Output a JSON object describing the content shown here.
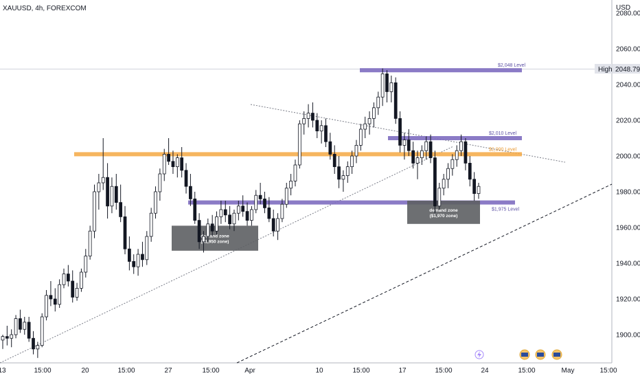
{
  "header": {
    "symbol_title": "XAUUSD, 4h, FOREXCOM"
  },
  "colors": {
    "up": "#131722",
    "down": "#131722",
    "level_purple": "#7e6dc0",
    "level_orange": "#f5a843",
    "zone_gray": "#5d5f63",
    "axis_bg": "#ffffff",
    "high_badge": "#e1e3ea"
  },
  "chart_data": {
    "type": "candlestick",
    "currency": "USD",
    "y_ticks": [
      "2080.00",
      "2060.00",
      "2040.00",
      "2020.00",
      "2000.00",
      "1980.00",
      "1960.00",
      "1940.00",
      "1920.00",
      "1900.00"
    ],
    "x_ticks": [
      "13",
      "15:00",
      "20",
      "15:00",
      "27",
      "15:00",
      "Apr",
      "10",
      "15:00",
      "17",
      "15:00",
      "24",
      "15:00",
      "May",
      "15:00"
    ],
    "ylim": [
      1886,
      2086
    ],
    "high_marker": {
      "label": "High",
      "value": "2048.79"
    },
    "levels": [
      {
        "label": "$2,048 Level",
        "price": 2048,
        "color": "purple"
      },
      {
        "label": "$2,010 Level",
        "price": 2010,
        "color": "purple"
      },
      {
        "label": "$2,000 Level",
        "price": 2001,
        "color": "orange"
      },
      {
        "label": "$1,975 Level",
        "price": 1974,
        "color": "purple"
      }
    ],
    "zones": [
      {
        "title": "demand zone",
        "subtitle": "($1,950 zone)",
        "price_high": 1961,
        "price_low": 1947
      },
      {
        "title": "demand zone",
        "subtitle": "($1,970 zone)",
        "price_high": 1975,
        "price_low": 1962
      }
    ],
    "candles": [
      [
        1897,
        1900,
        1892,
        1899
      ],
      [
        1899,
        1905,
        1894,
        1898
      ],
      [
        1898,
        1903,
        1893,
        1900
      ],
      [
        1900,
        1911,
        1898,
        1909
      ],
      [
        1909,
        1914,
        1901,
        1903
      ],
      [
        1903,
        1910,
        1900,
        1907
      ],
      [
        1907,
        1910,
        1896,
        1898
      ],
      [
        1898,
        1902,
        1889,
        1892
      ],
      [
        1892,
        1896,
        1887,
        1894
      ],
      [
        1894,
        1912,
        1893,
        1910
      ],
      [
        1910,
        1925,
        1908,
        1922
      ],
      [
        1922,
        1930,
        1916,
        1920
      ],
      [
        1920,
        1926,
        1913,
        1917
      ],
      [
        1917,
        1931,
        1915,
        1928
      ],
      [
        1928,
        1937,
        1926,
        1934
      ],
      [
        1934,
        1939,
        1927,
        1930
      ],
      [
        1930,
        1936,
        1918,
        1921
      ],
      [
        1921,
        1929,
        1919,
        1926
      ],
      [
        1926,
        1937,
        1924,
        1935
      ],
      [
        1935,
        1948,
        1932,
        1944
      ],
      [
        1944,
        1961,
        1942,
        1958
      ],
      [
        1958,
        1984,
        1954,
        1980
      ],
      [
        1980,
        1990,
        1970,
        1985
      ],
      [
        1985,
        2010,
        1981,
        1988
      ],
      [
        1988,
        1996,
        1965,
        1972
      ],
      [
        1972,
        1988,
        1968,
        1983
      ],
      [
        1983,
        1990,
        1970,
        1974
      ],
      [
        1974,
        1984,
        1963,
        1966
      ],
      [
        1966,
        1972,
        1945,
        1948
      ],
      [
        1948,
        1955,
        1936,
        1941
      ],
      [
        1941,
        1945,
        1934,
        1938
      ],
      [
        1938,
        1948,
        1933,
        1945
      ],
      [
        1945,
        1952,
        1938,
        1942
      ],
      [
        1942,
        1958,
        1939,
        1955
      ],
      [
        1955,
        1971,
        1952,
        1968
      ],
      [
        1968,
        1983,
        1965,
        1980
      ],
      [
        1980,
        1993,
        1975,
        1990
      ],
      [
        1990,
        2004,
        1986,
        2001
      ],
      [
        2001,
        2010,
        1995,
        1997
      ],
      [
        1997,
        2003,
        1990,
        1994
      ],
      [
        1994,
        2001,
        1988,
        1999
      ],
      [
        1999,
        2005,
        1988,
        1992
      ],
      [
        1992,
        1996,
        1979,
        1983
      ],
      [
        1983,
        1990,
        1972,
        1976
      ],
      [
        1976,
        1980,
        1962,
        1964
      ],
      [
        1964,
        1968,
        1948,
        1952
      ],
      [
        1952,
        1958,
        1946,
        1955
      ],
      [
        1955,
        1965,
        1952,
        1962
      ],
      [
        1962,
        1967,
        1955,
        1958
      ],
      [
        1958,
        1969,
        1956,
        1966
      ],
      [
        1966,
        1975,
        1962,
        1970
      ],
      [
        1970,
        1975,
        1963,
        1967
      ],
      [
        1967,
        1972,
        1959,
        1962
      ],
      [
        1962,
        1970,
        1958,
        1968
      ],
      [
        1968,
        1975,
        1964,
        1972
      ],
      [
        1972,
        1978,
        1966,
        1969
      ],
      [
        1969,
        1974,
        1961,
        1964
      ],
      [
        1964,
        1972,
        1961,
        1970
      ],
      [
        1970,
        1981,
        1968,
        1978
      ],
      [
        1978,
        1985,
        1973,
        1976
      ],
      [
        1976,
        1980,
        1968,
        1971
      ],
      [
        1971,
        1977,
        1963,
        1965
      ],
      [
        1965,
        1970,
        1955,
        1958
      ],
      [
        1958,
        1968,
        1953,
        1965
      ],
      [
        1965,
        1976,
        1963,
        1973
      ],
      [
        1973,
        1985,
        1971,
        1982
      ],
      [
        1982,
        1990,
        1978,
        1986
      ],
      [
        1986,
        1998,
        1983,
        1995
      ],
      [
        1995,
        2020,
        1993,
        2018
      ],
      [
        2018,
        2025,
        2012,
        2021
      ],
      [
        2021,
        2029,
        2016,
        2024
      ],
      [
        2024,
        2030,
        2016,
        2020
      ],
      [
        2020,
        2024,
        2010,
        2014
      ],
      [
        2014,
        2020,
        2007,
        2017
      ],
      [
        2017,
        2021,
        2005,
        2008
      ],
      [
        2008,
        2013,
        1998,
        2001
      ],
      [
        2001,
        2006,
        1990,
        1994
      ],
      [
        1994,
        2000,
        1982,
        1987
      ],
      [
        1987,
        1992,
        1980,
        1989
      ],
      [
        1989,
        1997,
        1985,
        1994
      ],
      [
        1994,
        2003,
        1990,
        2000
      ],
      [
        2000,
        2009,
        1996,
        2006
      ],
      [
        2006,
        2018,
        2003,
        2015
      ],
      [
        2015,
        2022,
        2010,
        2018
      ],
      [
        2018,
        2025,
        2012,
        2021
      ],
      [
        2021,
        2030,
        2016,
        2027
      ],
      [
        2027,
        2036,
        2023,
        2033
      ],
      [
        2033,
        2049,
        2028,
        2046
      ],
      [
        2046,
        2048,
        2030,
        2036
      ],
      [
        2036,
        2045,
        2030,
        2041
      ],
      [
        2041,
        2044,
        2018,
        2021
      ],
      [
        2021,
        2025,
        2002,
        2006
      ],
      [
        2006,
        2013,
        1998,
        2009
      ],
      [
        2009,
        2015,
        2000,
        2003
      ],
      [
        2003,
        2008,
        1993,
        1996
      ],
      [
        1996,
        2003,
        1987,
        1999
      ],
      [
        1999,
        2006,
        1995,
        2003
      ],
      [
        2003,
        2011,
        1998,
        2008
      ],
      [
        2008,
        2012,
        1996,
        1999
      ],
      [
        1999,
        2003,
        1968,
        1972
      ],
      [
        1972,
        1985,
        1970,
        1982
      ],
      [
        1982,
        1990,
        1978,
        1987
      ],
      [
        1987,
        1996,
        1982,
        1993
      ],
      [
        1993,
        2001,
        1989,
        1998
      ],
      [
        1998,
        2006,
        1994,
        2003
      ],
      [
        2003,
        2012,
        2000,
        2008
      ],
      [
        2008,
        2010,
        1992,
        1996
      ],
      [
        1996,
        2000,
        1983,
        1987
      ],
      [
        1987,
        1991,
        1975,
        1979
      ],
      [
        1979,
        1985,
        1976,
        1983
      ]
    ]
  }
}
